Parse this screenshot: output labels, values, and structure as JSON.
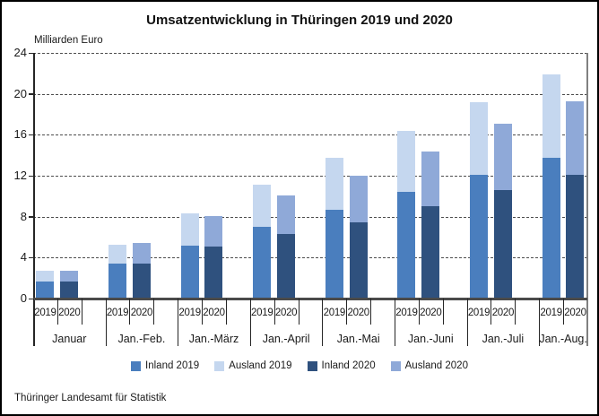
{
  "title": "Umsatzentwicklung in Thüringen 2019 und 2020",
  "unit_label": "Milliarden Euro",
  "source": "Thüringer Landesamt für Statistik",
  "colors": {
    "inland_2019": "#4A7EBE",
    "ausland_2019": "#C5D7EF",
    "inland_2020": "#2F517E",
    "ausland_2020": "#8FA9D8",
    "grid": "#4d4d4d",
    "axis": "#262626",
    "plot_right_border": "#808080"
  },
  "legend": [
    "Inland 2019",
    "Ausland 2019",
    "Inland 2020",
    "Ausland 2020"
  ],
  "chart_data": {
    "type": "bar",
    "stacked": true,
    "title": "Umsatzentwicklung in Thüringen 2019 und 2020",
    "ylabel": "Milliarden Euro",
    "ylim": [
      0,
      24
    ],
    "y_ticks": [
      0,
      4,
      8,
      12,
      16,
      20,
      24
    ],
    "grid": "horizontal-dashed",
    "legend_position": "bottom",
    "categories": [
      "Januar",
      "Jan.-Feb.",
      "Jan.-März",
      "Jan.-April",
      "Jan.-Mai",
      "Jan.-Juni",
      "Jan.-Juli",
      "Jan.-Aug."
    ],
    "sub_categories": [
      "2019",
      "2020"
    ],
    "series": [
      {
        "name": "Inland 2019",
        "year": "2019",
        "part": "Inland",
        "color": "#4A7EBE",
        "values": [
          1.6,
          3.3,
          5.1,
          6.9,
          8.6,
          10.3,
          12.0,
          13.7
        ]
      },
      {
        "name": "Ausland 2019",
        "year": "2019",
        "part": "Ausland",
        "color": "#C5D7EF",
        "values": [
          1.0,
          1.9,
          3.1,
          4.1,
          5.1,
          6.0,
          7.1,
          8.1
        ]
      },
      {
        "name": "Inland 2020",
        "year": "2020",
        "part": "Inland",
        "color": "#2F517E",
        "values": [
          1.6,
          3.3,
          5.0,
          6.2,
          7.4,
          8.9,
          10.5,
          12.0
        ]
      },
      {
        "name": "Ausland 2020",
        "year": "2020",
        "part": "Ausland",
        "color": "#8FA9D8",
        "values": [
          1.0,
          2.0,
          3.0,
          3.8,
          4.5,
          5.4,
          6.5,
          7.2
        ]
      }
    ],
    "stack_totals": {
      "2019": [
        2.6,
        5.2,
        8.2,
        11.0,
        13.7,
        16.3,
        19.1,
        21.8
      ],
      "2020": [
        2.6,
        5.3,
        8.0,
        10.0,
        11.9,
        14.3,
        17.0,
        19.2
      ]
    }
  }
}
